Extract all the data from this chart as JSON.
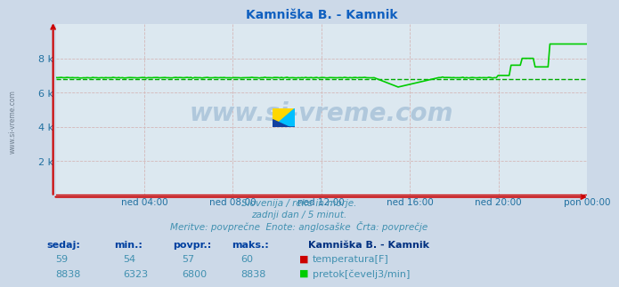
{
  "title": "Kamniška B. - Kamnik",
  "bg_color": "#ccd9e8",
  "plot_bg_color": "#dce8f0",
  "grid_color_minor": "#d4b8b8",
  "title_color": "#1060c0",
  "axis_color": "#cc0000",
  "tick_label_color": "#2070a0",
  "subtitle_lines": [
    "Slovenija / reke in morje.",
    "zadnji dan / 5 minut.",
    "Meritve: povprečne  Enote: anglosaške  Črta: povprečje"
  ],
  "subtitle_color": "#4090b0",
  "xlabel_ticks": [
    "ned 04:00",
    "ned 08:00",
    "ned 12:00",
    "ned 16:00",
    "ned 20:00",
    "pon 00:00"
  ],
  "xlabel_tick_positions": [
    0.1667,
    0.3333,
    0.5,
    0.6667,
    0.8333,
    1.0
  ],
  "ylim": [
    0,
    10000
  ],
  "ytick_values": [
    2000,
    4000,
    6000,
    8000
  ],
  "ytick_labels": [
    "2 k",
    "4 k",
    "6 k",
    "8 k"
  ],
  "temp_color": "#cc0000",
  "flow_color": "#00cc00",
  "avg_flow_color": "#00aa00",
  "avg_flow": 6800,
  "n_points": 288,
  "legend_title": "Kamniška B. - Kamnik",
  "legend_color": "#003080",
  "table_headers": [
    "sedaj:",
    "min.:",
    "povpr.:",
    "maks.:"
  ],
  "table_header_color": "#0040a0",
  "table_data_color": "#4090b0",
  "temp_sedaj": 59,
  "temp_min_val": 54,
  "temp_avg_val": 57,
  "temp_max_val": 60,
  "flow_sedaj": 8838,
  "flow_min_val": 6323,
  "flow_avg_val": 6800,
  "flow_max_val": 8838,
  "watermark_color": "#b0c8dc",
  "watermark_text": "www.si-vreme.com",
  "left_text": "www.si-vreme.com"
}
